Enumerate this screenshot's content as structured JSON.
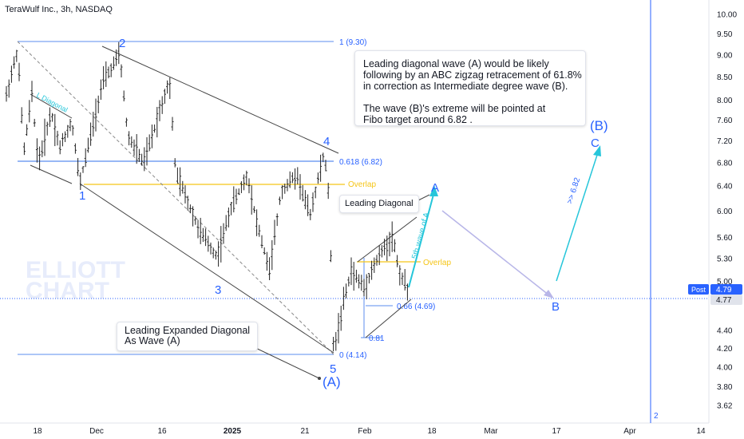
{
  "header": {
    "title": "TeraWulf Inc., 3h, NASDAQ"
  },
  "colors": {
    "wave_blue": "#2962ff",
    "fib_blue": "#2962ff",
    "overlap_yellow": "#f5c518",
    "cyan_arrow": "#26c6da",
    "lavender_arrow": "#b8b6e8",
    "grey_line": "#444444",
    "price_tag_bg": "#2962ff",
    "watermark": "#e7ecfb"
  },
  "price_axis": {
    "ticks": [
      "10.00",
      "9.50",
      "9.00",
      "8.50",
      "8.00",
      "7.60",
      "7.20",
      "6.80",
      "6.40",
      "6.00",
      "5.60",
      "5.30",
      "5.00",
      "4.77",
      "4.40",
      "4.20",
      "4.00",
      "3.80",
      "3.62"
    ],
    "post_label": "Post",
    "post_price": "4.79",
    "last_price": "4.77",
    "scale": "log"
  },
  "time_axis": {
    "ticks": [
      "18",
      "Dec",
      "16",
      "2025",
      "21",
      "Feb",
      "18",
      "Mar",
      "17",
      "Apr",
      "14"
    ]
  },
  "watermark": {
    "line1": "ELLIOTT",
    "line2": "CHART"
  },
  "waves": {
    "w1": "1",
    "w2": "2",
    "w3": "3",
    "w4": "4",
    "w5": "5",
    "wA_paren": "(A)",
    "wA": "A",
    "wB": "B",
    "wC": "C",
    "wB_paren": "(B)",
    "small_2": "2"
  },
  "fib_labels": {
    "fib_1": "1 (9.30)",
    "fib_0618": "0.618 (6.82)",
    "fib_0": "0 (4.14)",
    "fib_066": "0.66 (4.69)",
    "fib_081": "0.81"
  },
  "overlap_labels": {
    "overlap1": "Overlap",
    "overlap2": "Overlap"
  },
  "channel_labels": {
    "l_diagonal": "L Diagonal",
    "fifth_wave": "5th wave of A",
    "target_682": ">> 6.82"
  },
  "notes": {
    "main_note": "Leading diagonal wave (A) would be likely\nfollowing by an ABC zigzag retracement of 61.8%\nin correction as Intermediate degree wave (B).\n\nThe wave (B)'s extreme will be pointed at\n Fibo target around 6.82 .",
    "leading_diagonal": "Leading Diagonal",
    "expanded_diagonal": "Leading Expanded Diagonal\n  As Wave (A)"
  },
  "chart_data": {
    "type": "candlestick",
    "title": "TeraWulf Inc., 3h, NASDAQ",
    "y_scale": "log",
    "ylim": [
      3.55,
      10.3
    ],
    "price_ticks": [
      10.0,
      9.5,
      9.0,
      8.5,
      8.0,
      7.6,
      7.2,
      6.8,
      6.4,
      6.0,
      5.6,
      5.3,
      5.0,
      4.4,
      4.2,
      4.0,
      3.8,
      3.62
    ],
    "current_price": 4.77,
    "post_price": 4.79,
    "wave_points": [
      {
        "label": "1",
        "price": 6.55
      },
      {
        "label": "2",
        "price": 9.0
      },
      {
        "label": "3",
        "price": 5.1
      },
      {
        "label": "4",
        "price": 6.9
      },
      {
        "label": "5",
        "price": 4.14
      },
      {
        "label": "A (projected)",
        "price": 6.2
      },
      {
        "label": "B (projected)",
        "price": 4.75
      },
      {
        "label": "C (projected)",
        "price": 7.0
      }
    ],
    "fib_levels": [
      {
        "ratio": "1",
        "price": 9.3
      },
      {
        "ratio": "0.618",
        "price": 6.82
      },
      {
        "ratio": "0",
        "price": 4.14
      },
      {
        "ratio": "0.66",
        "price": 4.69
      }
    ],
    "overlap_levels": [
      6.45,
      5.3
    ]
  }
}
